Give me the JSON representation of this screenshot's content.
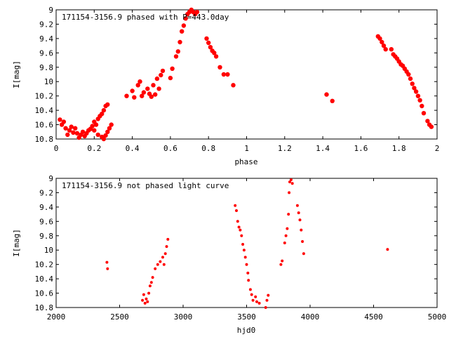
{
  "colors": {
    "points": "#ff0000",
    "axes": "#000000",
    "background": "#ffffff"
  },
  "chart_data": [
    {
      "type": "scatter",
      "title": "171154-3156.9 phased with P=443.0day",
      "xlabel": "phase",
      "ylabel": "I[mag]",
      "xlim": [
        0,
        2
      ],
      "ylim": [
        10.8,
        9
      ],
      "y_reversed": true,
      "grid": false,
      "legend": "none",
      "xticks": [
        "0",
        "0.2",
        "0.4",
        "0.6",
        "0.8",
        "1",
        "1.2",
        "1.4",
        "1.6",
        "1.8",
        "2"
      ],
      "yticks": [
        "9",
        "9.2",
        "9.4",
        "9.6",
        "9.8",
        "10",
        "10.2",
        "10.4",
        "10.6",
        "10.8"
      ],
      "points": [
        [
          0.02,
          10.53
        ],
        [
          0.03,
          10.6
        ],
        [
          0.04,
          10.56
        ],
        [
          0.05,
          10.65
        ],
        [
          0.06,
          10.74
        ],
        [
          0.07,
          10.68
        ],
        [
          0.08,
          10.63
        ],
        [
          0.09,
          10.71
        ],
        [
          0.1,
          10.65
        ],
        [
          0.11,
          10.72
        ],
        [
          0.12,
          10.78
        ],
        [
          0.13,
          10.74
        ],
        [
          0.14,
          10.7
        ],
        [
          0.15,
          10.76
        ],
        [
          0.16,
          10.72
        ],
        [
          0.17,
          10.68
        ],
        [
          0.18,
          10.66
        ],
        [
          0.19,
          10.62
        ],
        [
          0.2,
          10.56
        ],
        [
          0.21,
          10.6
        ],
        [
          0.22,
          10.52
        ],
        [
          0.23,
          10.48
        ],
        [
          0.24,
          10.45
        ],
        [
          0.25,
          10.4
        ],
        [
          0.2,
          10.68
        ],
        [
          0.22,
          10.74
        ],
        [
          0.24,
          10.77
        ],
        [
          0.25,
          10.8
        ],
        [
          0.26,
          10.75
        ],
        [
          0.27,
          10.7
        ],
        [
          0.28,
          10.65
        ],
        [
          0.29,
          10.6
        ],
        [
          0.26,
          10.34
        ],
        [
          0.27,
          10.32
        ],
        [
          0.37,
          10.2
        ],
        [
          0.4,
          10.13
        ],
        [
          0.41,
          10.22
        ],
        [
          0.43,
          10.05
        ],
        [
          0.44,
          10.0
        ],
        [
          0.45,
          10.2
        ],
        [
          0.46,
          10.15
        ],
        [
          0.48,
          10.1
        ],
        [
          0.49,
          10.17
        ],
        [
          0.5,
          10.21
        ],
        [
          0.51,
          10.05
        ],
        [
          0.52,
          10.18
        ],
        [
          0.53,
          9.96
        ],
        [
          0.54,
          10.1
        ],
        [
          0.55,
          9.91
        ],
        [
          0.56,
          9.85
        ],
        [
          0.6,
          9.95
        ],
        [
          0.61,
          9.82
        ],
        [
          0.63,
          9.65
        ],
        [
          0.64,
          9.58
        ],
        [
          0.65,
          9.45
        ],
        [
          0.66,
          9.3
        ],
        [
          0.67,
          9.22
        ],
        [
          0.68,
          9.12
        ],
        [
          0.69,
          9.06
        ],
        [
          0.7,
          9.03
        ],
        [
          0.71,
          9.0
        ],
        [
          0.72,
          9.03
        ],
        [
          0.73,
          9.06
        ],
        [
          0.74,
          9.03
        ],
        [
          0.79,
          9.4
        ],
        [
          0.8,
          9.46
        ],
        [
          0.81,
          9.52
        ],
        [
          0.82,
          9.57
        ],
        [
          0.83,
          9.6
        ],
        [
          0.84,
          9.65
        ],
        [
          0.86,
          9.8
        ],
        [
          0.88,
          9.9
        ],
        [
          0.9,
          9.9
        ],
        [
          0.93,
          10.05
        ],
        [
          1.42,
          10.18
        ],
        [
          1.45,
          10.27
        ],
        [
          1.69,
          9.37
        ],
        [
          1.7,
          9.4
        ],
        [
          1.71,
          9.45
        ],
        [
          1.72,
          9.5
        ],
        [
          1.73,
          9.55
        ],
        [
          1.76,
          9.55
        ],
        [
          1.77,
          9.62
        ],
        [
          1.78,
          9.65
        ],
        [
          1.79,
          9.68
        ],
        [
          1.8,
          9.72
        ],
        [
          1.81,
          9.76
        ],
        [
          1.82,
          9.78
        ],
        [
          1.83,
          9.82
        ],
        [
          1.84,
          9.86
        ],
        [
          1.85,
          9.9
        ],
        [
          1.86,
          9.96
        ],
        [
          1.87,
          10.03
        ],
        [
          1.88,
          10.09
        ],
        [
          1.89,
          10.14
        ],
        [
          1.9,
          10.2
        ],
        [
          1.91,
          10.26
        ],
        [
          1.92,
          10.34
        ],
        [
          1.93,
          10.44
        ],
        [
          1.95,
          10.55
        ],
        [
          1.96,
          10.6
        ],
        [
          1.97,
          10.63
        ]
      ]
    },
    {
      "type": "scatter",
      "title": "171154-3156.9 not phased light curve",
      "xlabel": "hjd0",
      "ylabel": "I[mag]",
      "xlim": [
        2000,
        5000
      ],
      "ylim": [
        10.8,
        9
      ],
      "y_reversed": true,
      "grid": false,
      "legend": "none",
      "xticks": [
        "2000",
        "2500",
        "3000",
        "3500",
        "4000",
        "4500",
        "5000"
      ],
      "yticks": [
        "9",
        "9.2",
        "9.4",
        "9.6",
        "9.8",
        "10",
        "10.2",
        "10.4",
        "10.6",
        "10.8"
      ],
      "points": [
        [
          2400,
          10.17
        ],
        [
          2405,
          10.26
        ],
        [
          2680,
          10.7
        ],
        [
          2690,
          10.62
        ],
        [
          2700,
          10.74
        ],
        [
          2710,
          10.68
        ],
        [
          2720,
          10.72
        ],
        [
          2730,
          10.6
        ],
        [
          2740,
          10.5
        ],
        [
          2750,
          10.45
        ],
        [
          2760,
          10.38
        ],
        [
          2780,
          10.26
        ],
        [
          2800,
          10.2
        ],
        [
          2820,
          10.16
        ],
        [
          2840,
          10.1
        ],
        [
          2850,
          10.2
        ],
        [
          2860,
          10.05
        ],
        [
          2870,
          9.95
        ],
        [
          2880,
          9.85
        ],
        [
          3410,
          9.38
        ],
        [
          3420,
          9.45
        ],
        [
          3430,
          9.6
        ],
        [
          3440,
          9.68
        ],
        [
          3450,
          9.72
        ],
        [
          3460,
          9.8
        ],
        [
          3470,
          9.92
        ],
        [
          3480,
          10.0
        ],
        [
          3490,
          10.1
        ],
        [
          3500,
          10.2
        ],
        [
          3510,
          10.32
        ],
        [
          3515,
          10.42
        ],
        [
          3530,
          10.55
        ],
        [
          3540,
          10.62
        ],
        [
          3550,
          10.7
        ],
        [
          3570,
          10.65
        ],
        [
          3580,
          10.72
        ],
        [
          3600,
          10.74
        ],
        [
          3650,
          10.8
        ],
        [
          3660,
          10.7
        ],
        [
          3670,
          10.63
        ],
        [
          3770,
          10.2
        ],
        [
          3780,
          10.15
        ],
        [
          3800,
          9.9
        ],
        [
          3810,
          9.8
        ],
        [
          3820,
          9.7
        ],
        [
          3830,
          9.5
        ],
        [
          3835,
          9.2
        ],
        [
          3840,
          9.05
        ],
        [
          3850,
          9.02
        ],
        [
          3860,
          9.07
        ],
        [
          3900,
          9.38
        ],
        [
          3910,
          9.48
        ],
        [
          3920,
          9.58
        ],
        [
          3930,
          9.72
        ],
        [
          3940,
          9.88
        ],
        [
          3950,
          10.05
        ],
        [
          4610,
          9.99
        ]
      ]
    }
  ]
}
